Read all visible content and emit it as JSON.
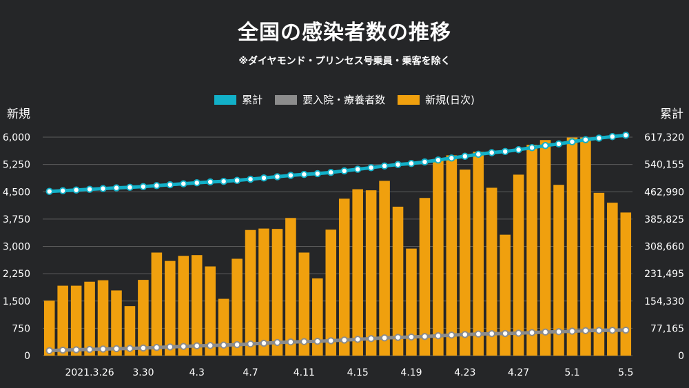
{
  "title": "全国の感染者数の推移",
  "subtitle": "※ダイヤモンド・プリンセス号乗員・乗客を除く",
  "legend": {
    "cumulative": "累計",
    "hospital": "要入院・療養者数",
    "new": "新規(日次)"
  },
  "colors": {
    "background": "#252628",
    "bar": "#f0a00e",
    "cumulative": "#12b0c8",
    "hospital": "#8c8c8c",
    "grid": "#5c5c5c",
    "marker_fill": "#ffffff"
  },
  "chart_data": {
    "type": "bar+line",
    "title": "全国の感染者数の推移",
    "subtitle": "※ダイヤモンド・プリンセス号乗員・乗客を除く",
    "ylabel_left": "新規",
    "ylabel_right": "累計",
    "ylim_left": [
      0,
      6000
    ],
    "ylim_right": [
      0,
      617320
    ],
    "left_ticks": [
      "0",
      "750",
      "1,500",
      "2,250",
      "3,000",
      "3,750",
      "4,500",
      "5,250",
      "6,000"
    ],
    "right_ticks": [
      "0",
      "77,165",
      "154,330",
      "231,495",
      "308,660",
      "385,825",
      "462,990",
      "540,155",
      "617,320"
    ],
    "x_tick_labels": [
      {
        "index": 3,
        "label": "2021.3.26"
      },
      {
        "index": 7,
        "label": "3.30"
      },
      {
        "index": 11,
        "label": "4.3"
      },
      {
        "index": 15,
        "label": "4.7"
      },
      {
        "index": 19,
        "label": "4.11"
      },
      {
        "index": 23,
        "label": "4.15"
      },
      {
        "index": 27,
        "label": "4.19"
      },
      {
        "index": 31,
        "label": "4.23"
      },
      {
        "index": 35,
        "label": "4.27"
      },
      {
        "index": 39,
        "label": "5.1"
      },
      {
        "index": 43,
        "label": "5.5"
      }
    ],
    "grid": true,
    "legend_position": "top-center",
    "series": [
      {
        "name": "新規(日次)",
        "type": "bar",
        "axis": "left",
        "values": [
          1510,
          1920,
          1920,
          2030,
          2070,
          1790,
          1360,
          2080,
          2830,
          2600,
          2740,
          2760,
          2450,
          1560,
          2660,
          3450,
          3490,
          3480,
          3780,
          2830,
          2120,
          3460,
          4310,
          4570,
          4540,
          4800,
          4090,
          2940,
          4330,
          5400,
          5500,
          5110,
          5600,
          4610,
          3320,
          4970,
          5790,
          5920,
          4690,
          5990,
          5990,
          4470,
          4200,
          3930
        ]
      },
      {
        "name": "累計",
        "type": "line",
        "axis": "right",
        "values": [
          464000,
          466000,
          468000,
          470000,
          472000,
          474000,
          475500,
          477500,
          480300,
          482900,
          485600,
          488400,
          490800,
          492400,
          495100,
          498500,
          502000,
          505500,
          509300,
          512100,
          514300,
          517700,
          522000,
          526600,
          531100,
          535900,
          540000,
          543000,
          547300,
          552700,
          558200,
          563300,
          568900,
          573500,
          576800,
          581800,
          587600,
          593500,
          598200,
          604200,
          610200,
          614600,
          618800,
          622800
        ]
      },
      {
        "name": "要入院・療養者数",
        "type": "line",
        "axis": "right",
        "values": [
          14000,
          15500,
          16500,
          17500,
          18500,
          19500,
          20200,
          21500,
          23000,
          24500,
          26000,
          27500,
          28500,
          29700,
          31000,
          33000,
          35000,
          37000,
          38500,
          39500,
          40500,
          42000,
          44000,
          46000,
          48000,
          50000,
          51500,
          52500,
          54000,
          56000,
          58000,
          59500,
          61000,
          62000,
          62500,
          63500,
          65000,
          66500,
          67500,
          69000,
          70500,
          71000,
          71500,
          72000
        ]
      }
    ]
  }
}
